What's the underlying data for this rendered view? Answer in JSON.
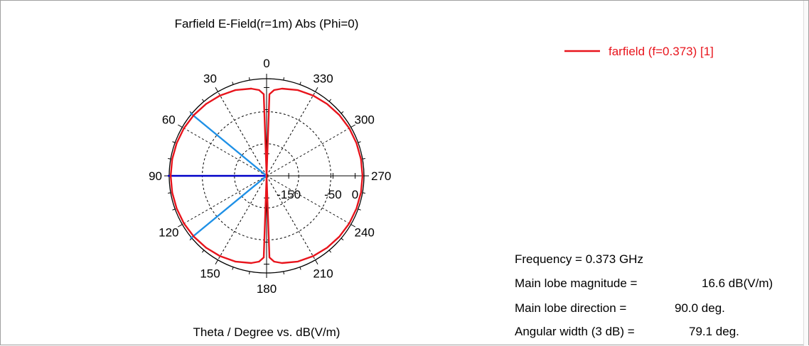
{
  "chart_data": {
    "type": "polar",
    "title": "Farfield E-Field(r=1m) Abs (Phi=0)",
    "xlabel": "Theta / Degree vs. dB(V/m)",
    "angle_tick_labels": [
      "0",
      "30",
      "60",
      "90",
      "120",
      "150",
      "180",
      "210",
      "240",
      "270",
      "300",
      "330"
    ],
    "angle_ticks_deg": [
      0,
      30,
      60,
      90,
      120,
      150,
      180,
      210,
      240,
      270,
      300,
      330
    ],
    "radial_tick_labels": [
      "-150",
      "-50",
      "0"
    ],
    "radial_ticks": [
      -150,
      -50,
      0
    ],
    "angle_direction": "counterclockwise, 0 at top",
    "grid": true,
    "legend_position": "top-right",
    "series": [
      {
        "name": "farfield (f=0.373) [1]",
        "color": "#e8141c",
        "theta_deg": [
          0,
          2,
          5,
          10,
          20,
          30,
          40,
          50,
          60,
          70,
          80,
          90,
          100,
          110,
          120,
          130,
          140,
          150,
          160,
          170,
          175,
          178,
          180
        ],
        "values_dB": [
          -200,
          -15,
          -5,
          0.6,
          6.6,
          10.1,
          12.6,
          14.4,
          15.6,
          16.2,
          16.5,
          16.6,
          16.5,
          16.2,
          15.6,
          14.4,
          12.6,
          10.1,
          6.6,
          0.6,
          -5,
          -15,
          -200
        ]
      }
    ],
    "markers": [
      {
        "name": "main-lobe-direction",
        "theta_deg": 90,
        "color": "#0000c8"
      },
      {
        "name": "3dB-beamwidth-edge-upper",
        "theta_deg": 50.45,
        "color": "#1e90e6"
      },
      {
        "name": "3dB-beamwidth-edge-lower",
        "theta_deg": 129.55,
        "color": "#1e90e6"
      }
    ],
    "legend": {
      "label": "farfield (f=0.373) [1]",
      "color": "#e8141c"
    }
  },
  "info": {
    "frequency_label": "Frequency = 0.373 GHz",
    "main_lobe_magnitude_label": "Main lobe magnitude =",
    "main_lobe_magnitude_value": "16.6 dB(V/m)",
    "main_lobe_direction_label": "Main lobe direction =",
    "main_lobe_direction_value": "90.0 deg.",
    "angular_width_label": "Angular width (3 dB) =",
    "angular_width_value": "79.1 deg."
  },
  "colors": {
    "pattern": "#e8141c",
    "main_lobe_line": "#0000c8",
    "beamwidth_lines": "#1e90e6",
    "grid": "#000000"
  }
}
